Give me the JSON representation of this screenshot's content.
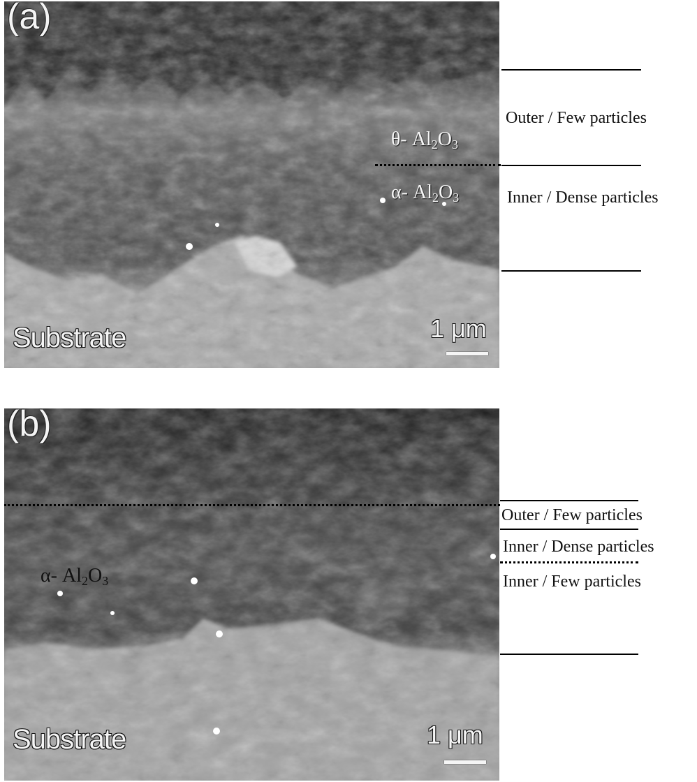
{
  "panel_a": {
    "letter": "(a)",
    "phase_theta": {
      "symbol": "θ- Al",
      "sub1": "2",
      "mid": "O",
      "sub2": "3"
    },
    "phase_alpha": {
      "symbol": "α- Al",
      "sub1": "2",
      "mid": "O",
      "sub2": "3"
    },
    "substrate": "Substrate",
    "scale": "1 μm",
    "layers": [
      "Outer / Few particles",
      "Inner / Dense particles"
    ]
  },
  "panel_b": {
    "letter": "(b)",
    "phase_alpha": {
      "symbol": "α- Al",
      "sub1": "2",
      "mid": "O",
      "sub2": "3"
    },
    "substrate": "Substrate",
    "scale": "1 μm",
    "layers": [
      "Outer / Few particles",
      "Inner / Dense particles",
      "Inner / Few particles"
    ]
  }
}
